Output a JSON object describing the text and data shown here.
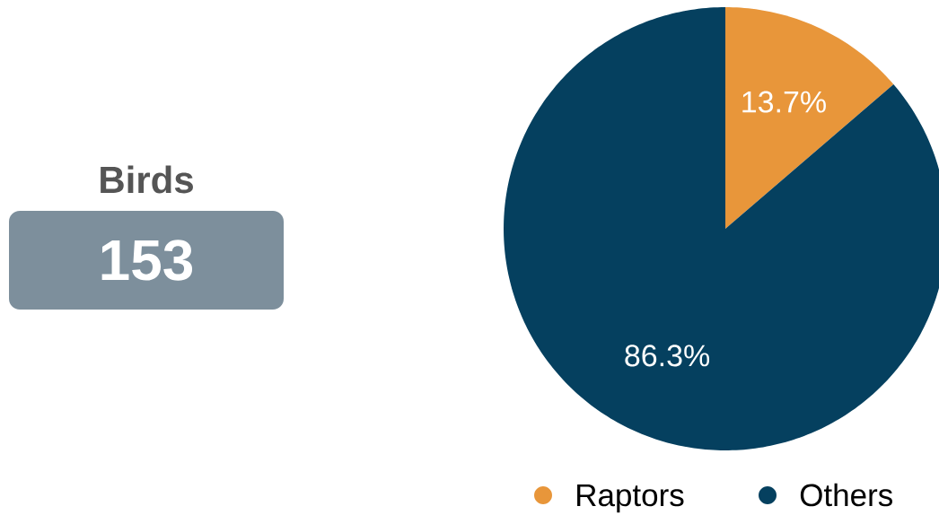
{
  "chart_data": [
    {
      "type": "other",
      "title": "Birds",
      "annotations": [
        "153"
      ]
    },
    {
      "type": "pie",
      "categories": [
        "Raptors",
        "Others"
      ],
      "values": [
        13.7,
        86.3
      ],
      "colors": [
        "#e8963a",
        "#05405f"
      ],
      "value_labels": [
        "13.7%",
        "86.3%"
      ],
      "legend": "bottom"
    }
  ]
}
